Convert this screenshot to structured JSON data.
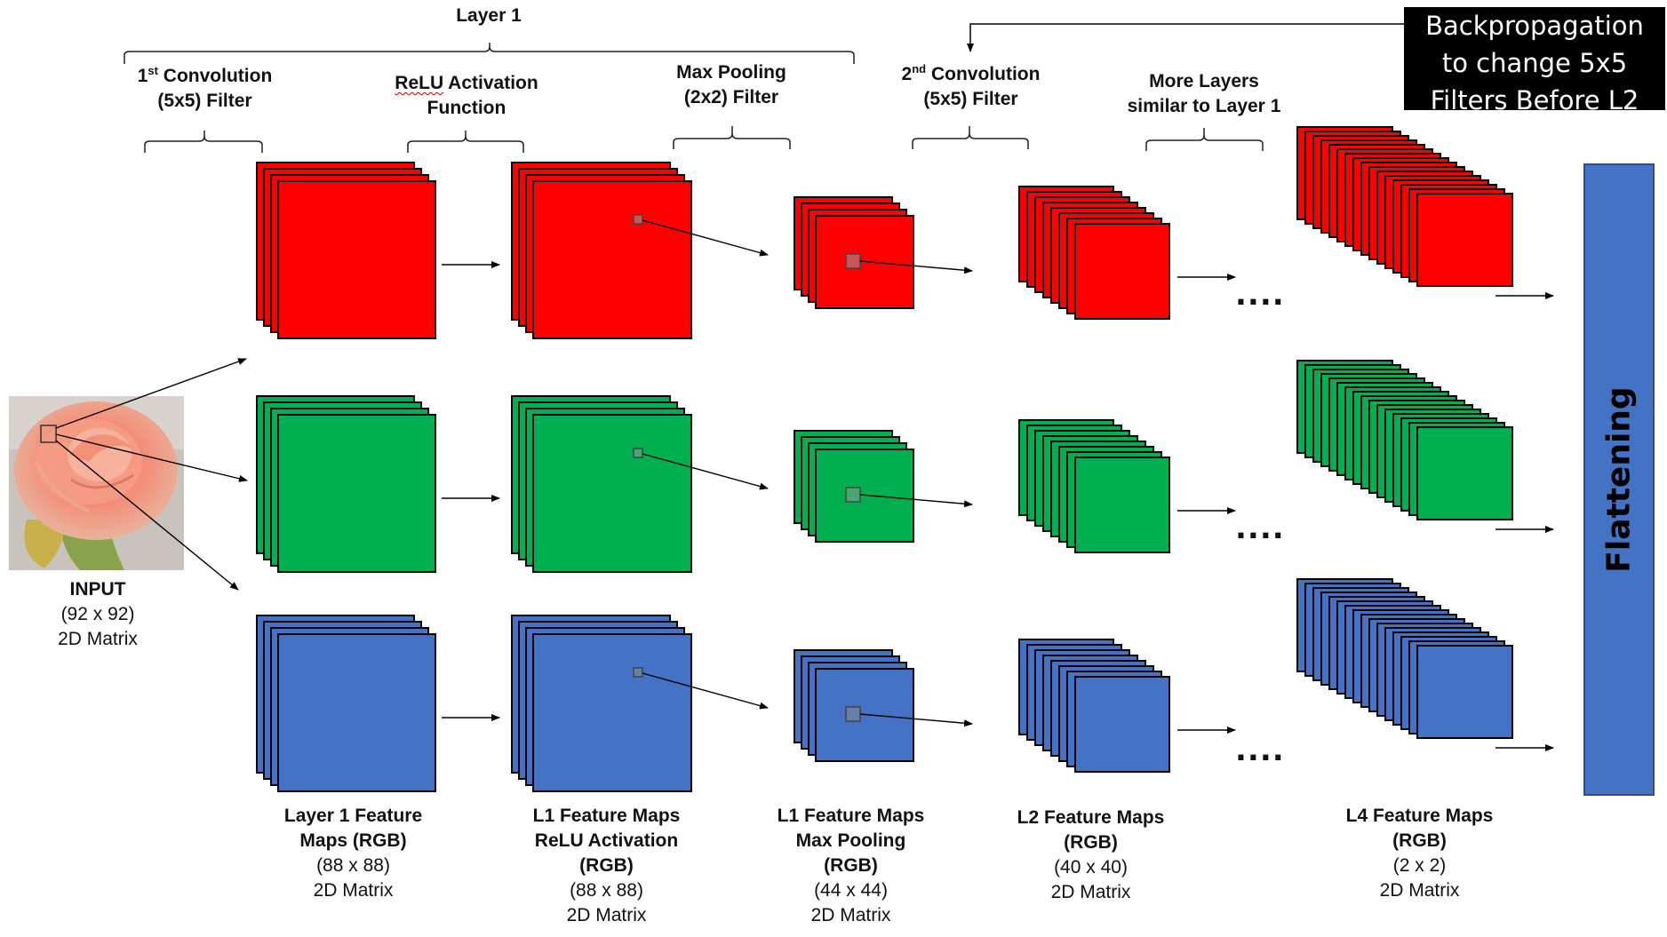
{
  "colors": {
    "red": "#ff0000",
    "green": "#00b050",
    "blue": "#4472c4",
    "black": "#000000",
    "white": "#ffffff"
  },
  "layer1": {
    "title": "Layer 1"
  },
  "stages": {
    "conv1": {
      "ord_num": "1",
      "ord_sup": "st",
      "line1_rest": " Convolution",
      "line2": "(5x5) Filter"
    },
    "relu": {
      "line1_word": "ReLU",
      "line1_rest": " Activation",
      "line2": "Function"
    },
    "maxpool": {
      "line1": "Max Pooling",
      "line2": "(2x2) Filter"
    },
    "conv2": {
      "ord_num": "2",
      "ord_sup": "nd",
      "line1_rest": " Convolution",
      "line2": "(5x5) Filter"
    },
    "more": {
      "line1": "More Layers",
      "line2": "similar to Layer 1"
    }
  },
  "backprop": {
    "line1": "Backpropagation",
    "line2": "to change 5x5",
    "line3": "Filters Before L2"
  },
  "flattening": {
    "label": "Flattening"
  },
  "input": {
    "title": "INPUT",
    "dims": "(92 x 92)",
    "type": "2D Matrix",
    "image_icon": "rose-photo-icon"
  },
  "captions": {
    "l1": {
      "line1": "Layer 1 Feature",
      "line2": "Maps (RGB)",
      "dims": "(88 x 88)",
      "type": "2D Matrix"
    },
    "relu": {
      "line1": "L1 Feature Maps",
      "line2": "ReLU Activation",
      "line3": "(RGB)",
      "dims": "(88 x 88)",
      "type": "2D Matrix"
    },
    "pool": {
      "line1": "L1 Feature Maps",
      "line2": "Max Pooling",
      "line3": "(RGB)",
      "dims": "(44 x 44)",
      "type": "2D Matrix"
    },
    "l2": {
      "line1": "L2 Feature Maps",
      "line2": "(RGB)",
      "dims": "(40 x 40)",
      "type": "2D Matrix"
    },
    "l4": {
      "line1": "L4 Feature Maps",
      "line2": "(RGB)",
      "dims": "(2 x 2)",
      "type": "2D Matrix"
    }
  },
  "ellipsis": "....",
  "channels": [
    "red",
    "green",
    "blue"
  ],
  "stacks": {
    "layer1_count": 4,
    "relu_count": 4,
    "pool_count": 4,
    "l2_count": 8,
    "l4_count": 16
  }
}
